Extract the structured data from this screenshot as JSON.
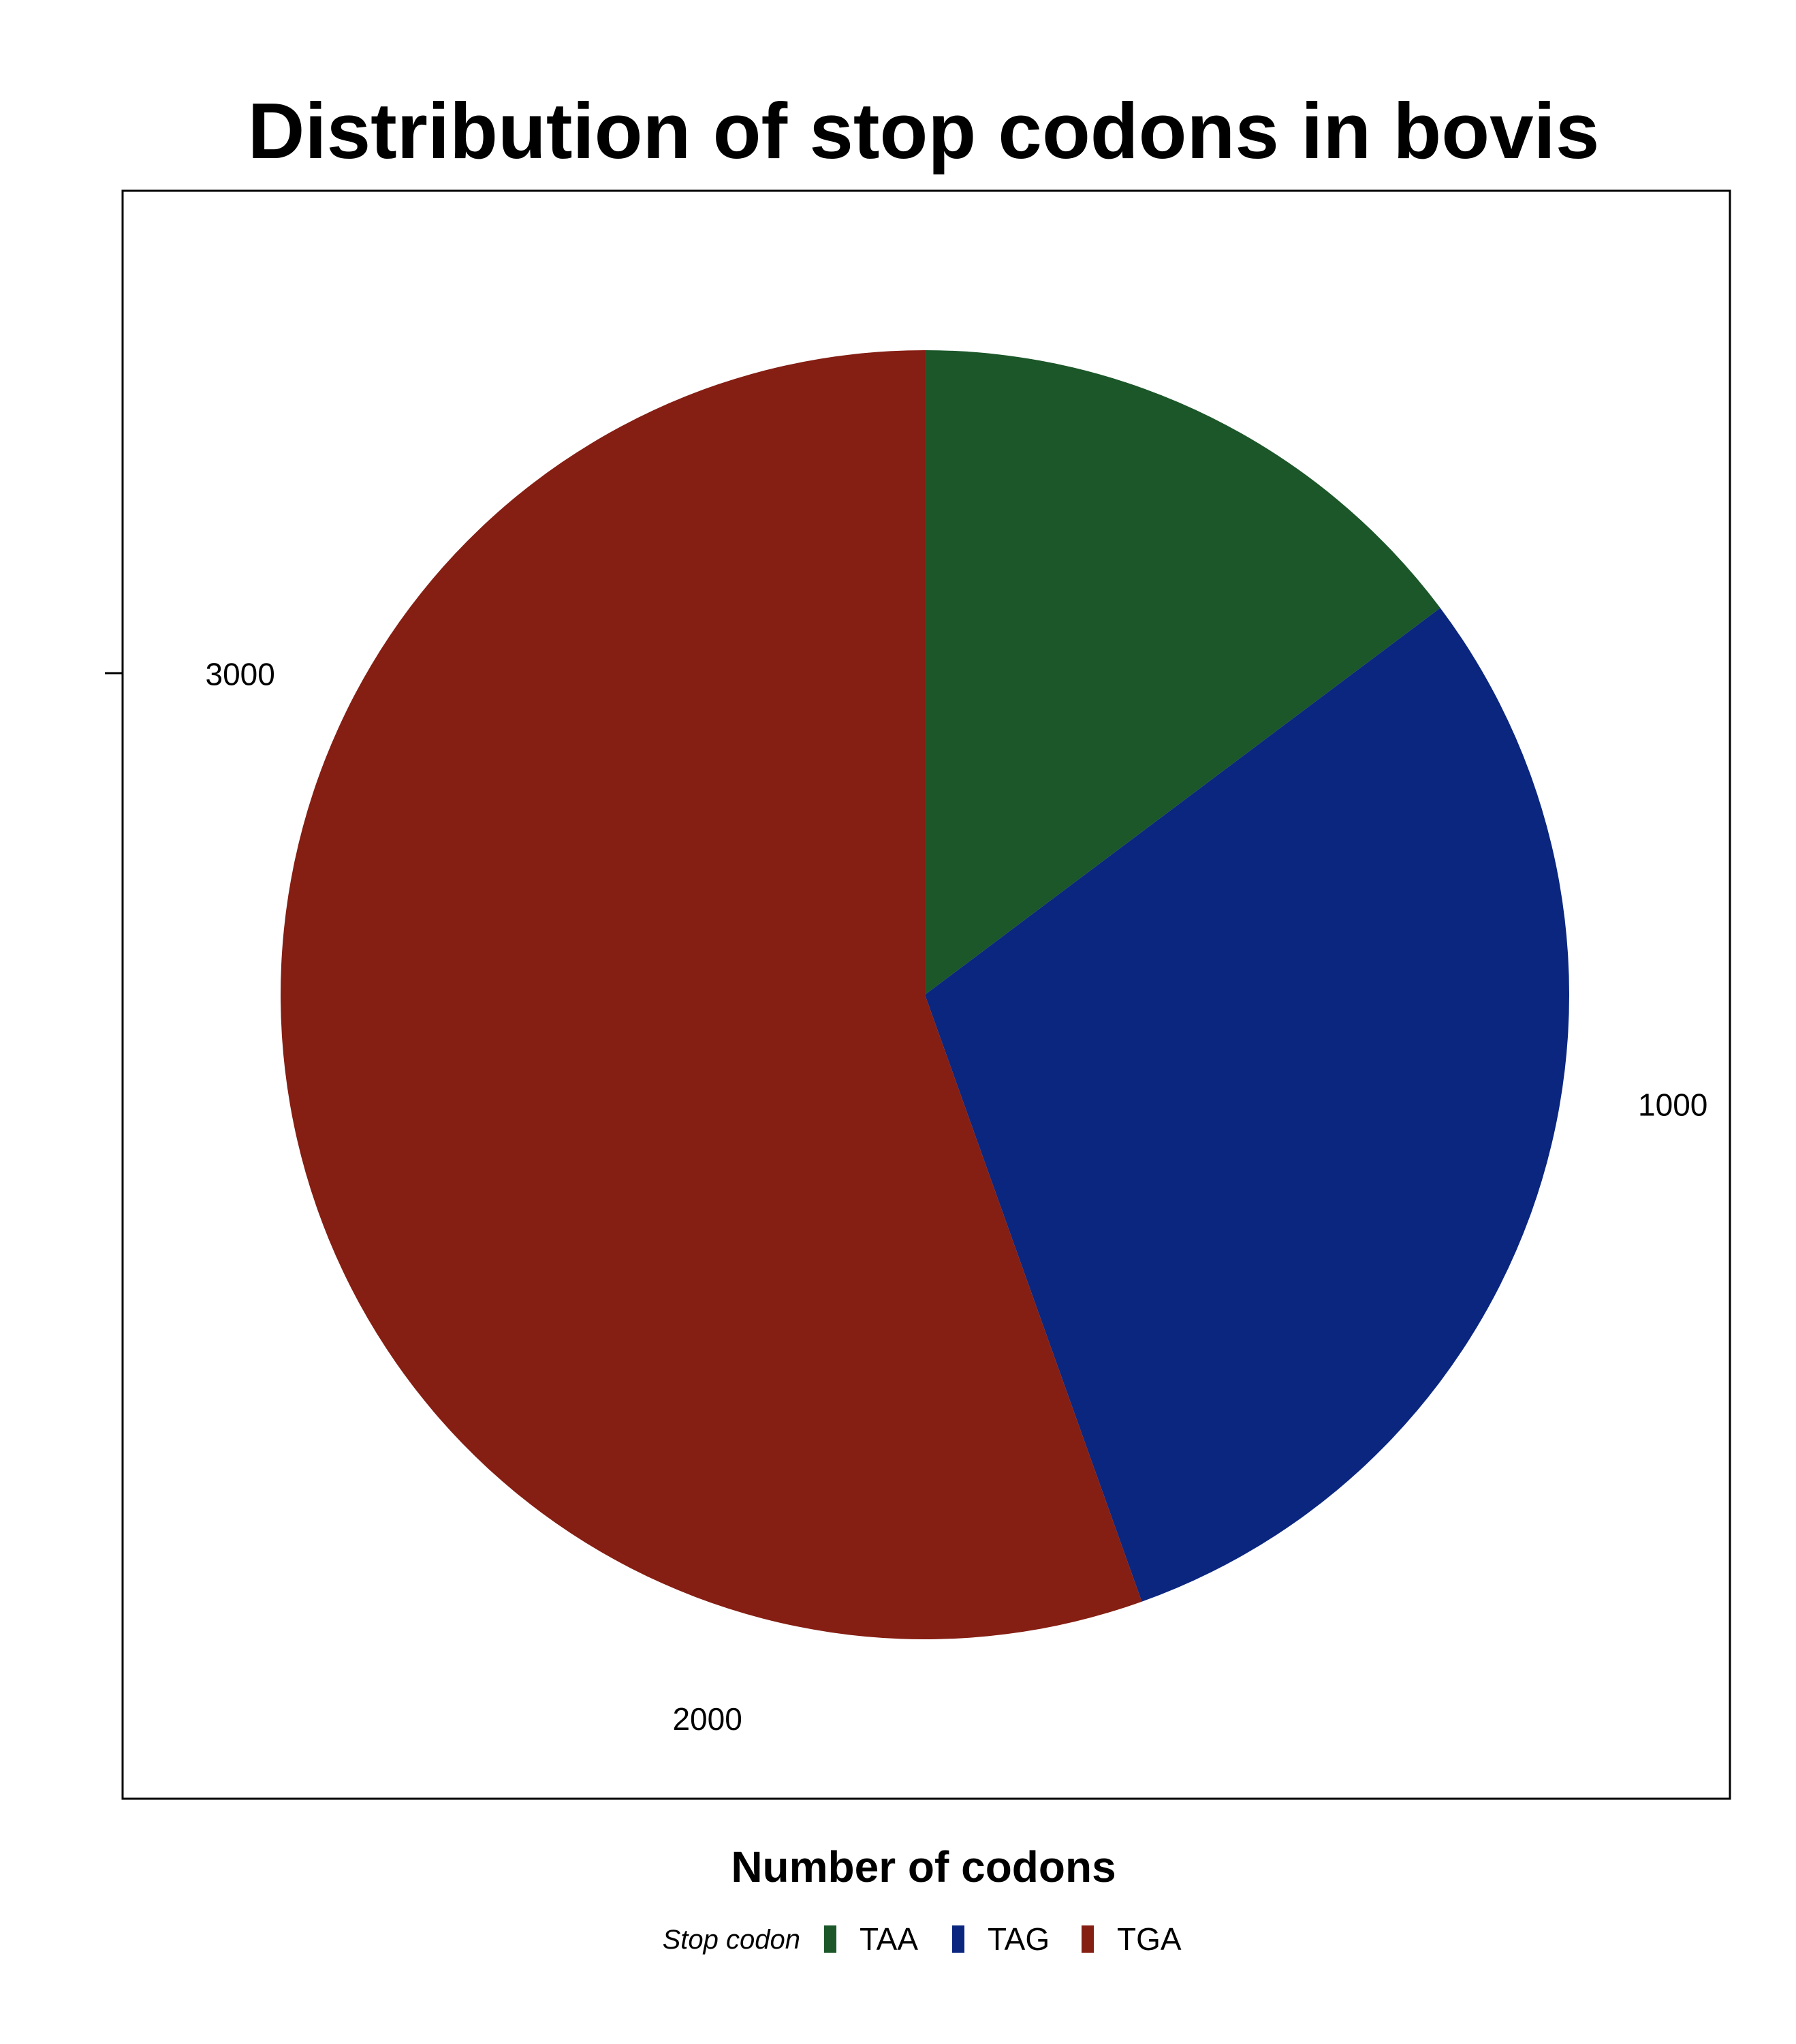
{
  "chart_data": {
    "type": "pie",
    "title": "Distribution of stop codons in bovis",
    "xlabel": "Number of codons",
    "ylabel": "",
    "categories": [
      "TAA",
      "TAG",
      "TGA"
    ],
    "values": [
      540,
      1090,
      2030
    ],
    "colors": [
      "#1B5729",
      "#0A267F",
      "#851E13"
    ],
    "axis_ticks": [
      1000,
      2000,
      3000
    ],
    "axis_range": [
      0,
      3660
    ],
    "legend": {
      "title": "Stop codon",
      "entries": [
        "TAA",
        "TAG",
        "TGA"
      ],
      "position": "bottom"
    }
  }
}
